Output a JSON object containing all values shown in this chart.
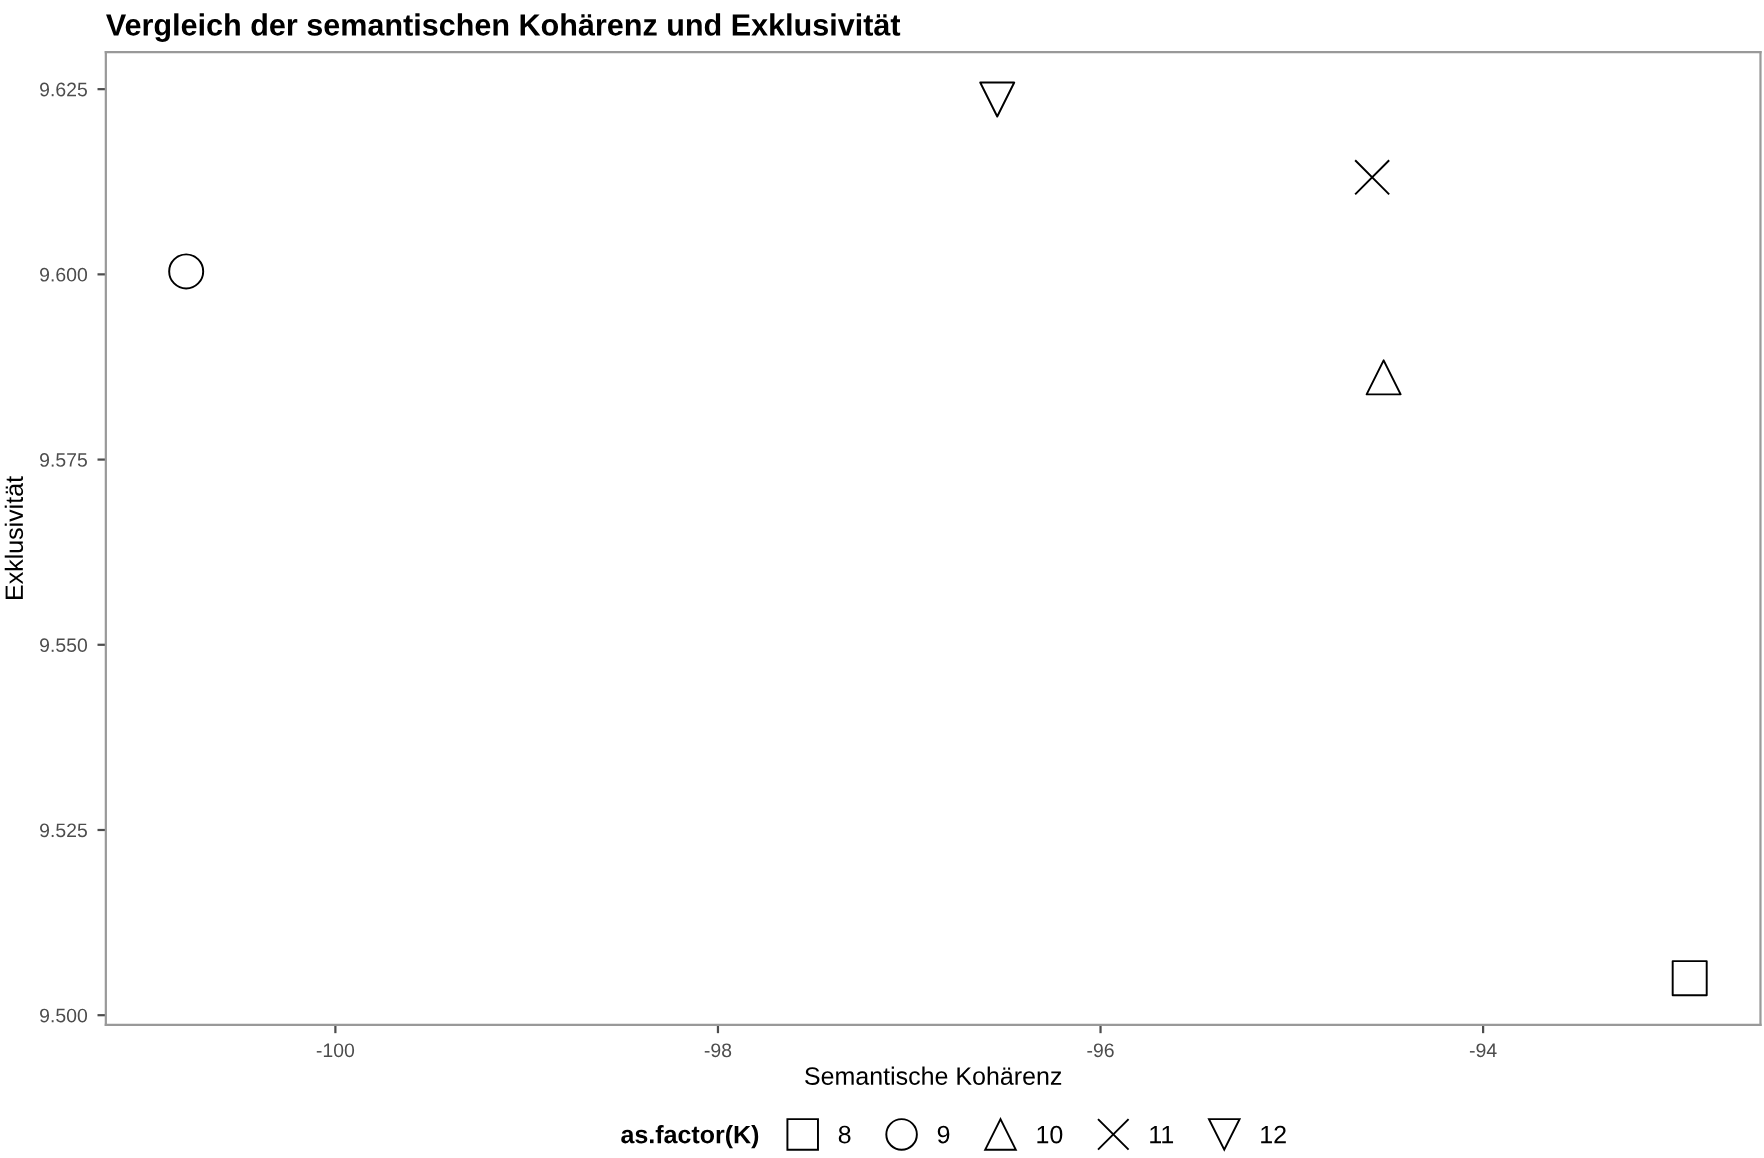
{
  "chart_data": {
    "type": "scatter",
    "title": "Vergleich der semantischen Kohärenz und Exklusivität",
    "xlabel": "Semantische Kohärenz",
    "ylabel": "Exklusivität",
    "legend_title": "as.factor(K)",
    "legend": "bottom",
    "grid": false,
    "xlim": [
      -101.2,
      -92.55
    ],
    "ylim": [
      9.4987,
      9.63
    ],
    "xticks": [
      -100,
      -98,
      -96,
      -94
    ],
    "yticks": [
      {
        "value": 9.5,
        "label": "9.500"
      },
      {
        "value": 9.525,
        "label": "9.525"
      },
      {
        "value": 9.55,
        "label": "9.550"
      },
      {
        "value": 9.575,
        "label": "9.575"
      },
      {
        "value": 9.6,
        "label": "9.600"
      },
      {
        "value": 9.625,
        "label": "9.625"
      }
    ],
    "series": [
      {
        "name": "8",
        "color": "#000000",
        "marker": "square",
        "x": [
          -92.92
        ],
        "values": [
          9.505
        ]
      },
      {
        "name": "9",
        "color": "#000000",
        "marker": "circle",
        "x": [
          -100.78
        ],
        "values": [
          9.6004
        ]
      },
      {
        "name": "10",
        "color": "#000000",
        "marker": "triangle",
        "x": [
          -94.52
        ],
        "values": [
          9.5861
        ]
      },
      {
        "name": "11",
        "color": "#000000",
        "marker": "cross",
        "x": [
          -94.58
        ],
        "values": [
          9.6131
        ]
      },
      {
        "name": "12",
        "color": "#000000",
        "marker": "triangle_down",
        "x": [
          -96.54
        ],
        "values": [
          9.6236
        ]
      }
    ]
  }
}
